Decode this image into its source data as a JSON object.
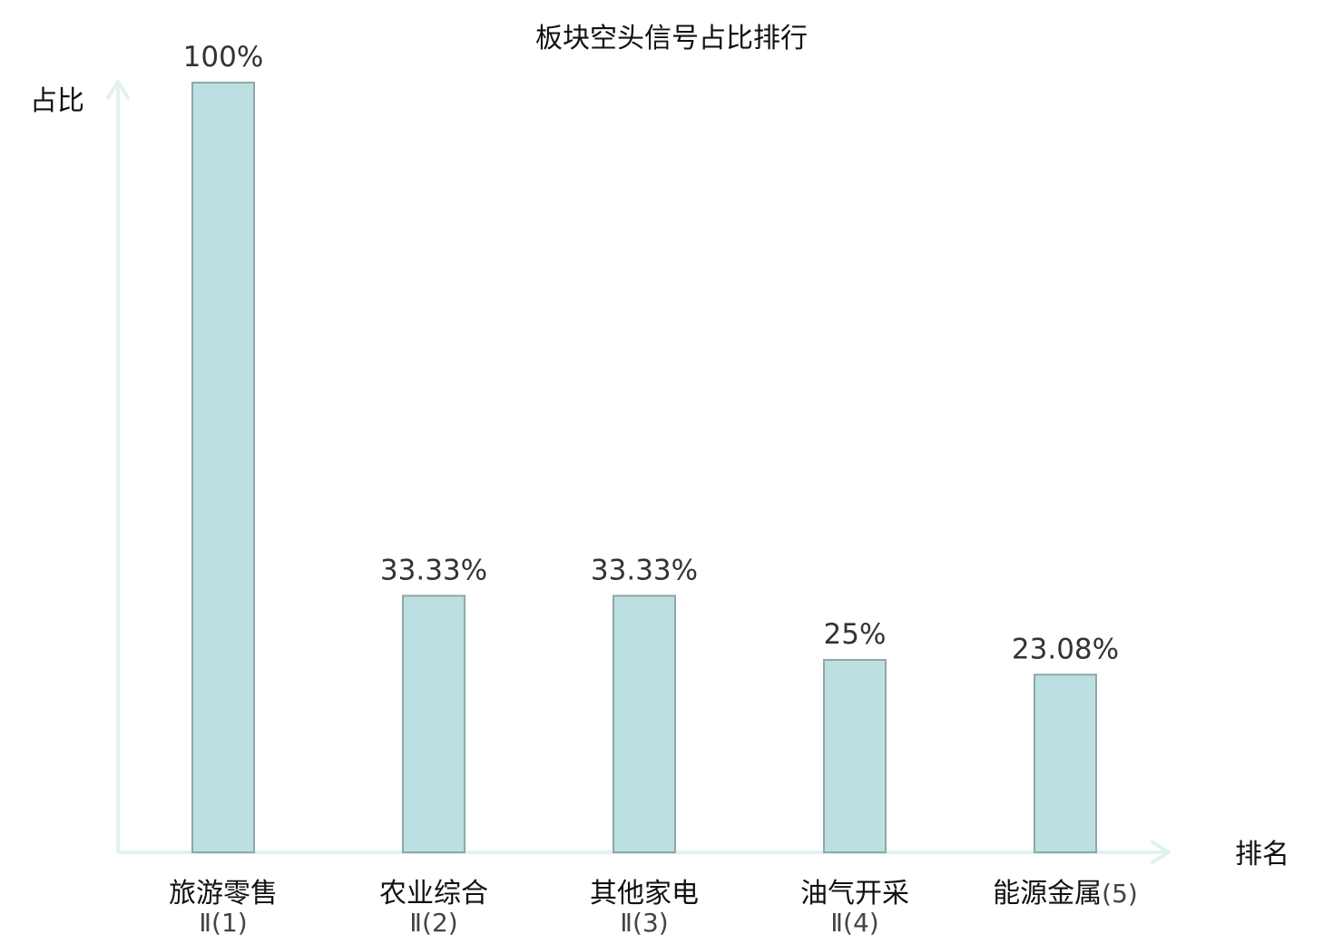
{
  "chart_data": {
    "type": "bar",
    "title": "板块空头信号占比排行",
    "ylabel": "占比",
    "xlabel": "排名",
    "categories": [
      "旅游零售",
      "农业综合",
      "其他家电",
      "油气开采",
      "能源金属"
    ],
    "category_suffixes": [
      "Ⅱ(1)",
      "Ⅱ(2)",
      "Ⅱ(3)",
      "Ⅱ(4)",
      "(5)"
    ],
    "values": [
      100,
      33.33,
      33.33,
      25,
      23.08
    ],
    "value_labels": [
      "100%",
      "33.33%",
      "33.33%",
      "25%",
      "23.08%"
    ],
    "highlight_index": 2,
    "ylim": [
      0,
      100
    ],
    "grid": false,
    "colors": {
      "bar_fill": "#bce0e2",
      "bar_stroke": "#8fa7a8",
      "axis": "#dff2ef",
      "highlight_text": "#e8151b",
      "text": "#111111",
      "value_text": "#333333"
    }
  }
}
